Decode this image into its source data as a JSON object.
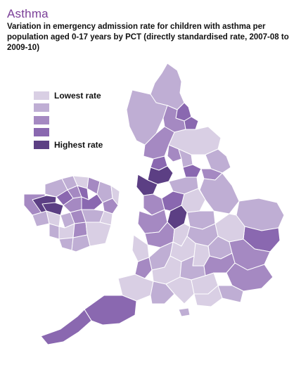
{
  "title": "Asthma",
  "subtitle": "Variation in emergency admission rate for children with asthma per population aged 0-17 years by PCT (directly standardised rate, 2007-08 to 2009-10)",
  "legend": {
    "items": [
      {
        "label": "Lowest rate",
        "color": "#d9cfe4"
      },
      {
        "label": "",
        "color": "#bfaed4"
      },
      {
        "label": "",
        "color": "#a589c2"
      },
      {
        "label": "",
        "color": "#8a68b0"
      },
      {
        "label": "Highest rate",
        "color": "#5c3f84"
      }
    ]
  },
  "colors": {
    "title": "#7b3f98",
    "border": "#ffffff"
  }
}
